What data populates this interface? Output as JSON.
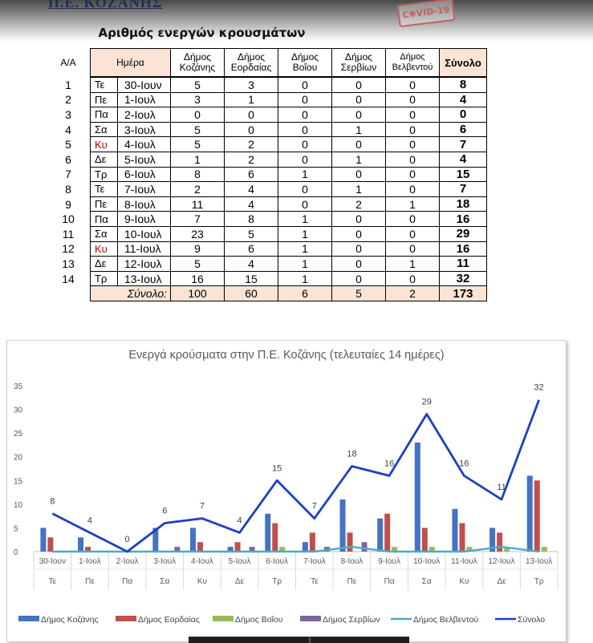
{
  "header": {
    "region": "Π.Ε. ΚΟΖΑΝΗΣ",
    "stamp": "C✱VID-19"
  },
  "table": {
    "title": "Αριθμός ενεργών κρουσμάτων",
    "head": {
      "aa": "Α/Α",
      "day": "Ημέρα",
      "c1a": "Δήμος",
      "c1b": "Κοζάνης",
      "c2a": "Δήμος",
      "c2b": "Εορδαίας",
      "c3a": "Δήμος",
      "c3b": "Βοΐου",
      "c4a": "Δήμος",
      "c4b": "Σερβίων",
      "c5a": "Δήμος",
      "c5b": "Βελβεντού",
      "total": "Σύνολο"
    },
    "rows": [
      {
        "aa": "1",
        "wd": "Τε",
        "date": "30-Ιουν",
        "k": "5",
        "e": "3",
        "v": "0",
        "s": "0",
        "b": "0",
        "t": "8"
      },
      {
        "aa": "2",
        "wd": "Πε",
        "date": "1-Ιουλ",
        "k": "3",
        "e": "1",
        "v": "0",
        "s": "0",
        "b": "0",
        "t": "4"
      },
      {
        "aa": "3",
        "wd": "Πα",
        "date": "2-Ιουλ",
        "k": "0",
        "e": "0",
        "v": "0",
        "s": "0",
        "b": "0",
        "t": "0"
      },
      {
        "aa": "4",
        "wd": "Σα",
        "date": "3-Ιουλ",
        "k": "5",
        "e": "0",
        "v": "0",
        "s": "1",
        "b": "0",
        "t": "6"
      },
      {
        "aa": "5",
        "wd": "Κυ",
        "date": "4-Ιουλ",
        "k": "5",
        "e": "2",
        "v": "0",
        "s": "0",
        "b": "0",
        "t": "7"
      },
      {
        "aa": "6",
        "wd": "Δε",
        "date": "5-Ιουλ",
        "k": "1",
        "e": "2",
        "v": "0",
        "s": "1",
        "b": "0",
        "t": "4"
      },
      {
        "aa": "7",
        "wd": "Τρ",
        "date": "6-Ιουλ",
        "k": "8",
        "e": "6",
        "v": "1",
        "s": "0",
        "b": "0",
        "t": "15"
      },
      {
        "aa": "8",
        "wd": "Τε",
        "date": "7-Ιουλ",
        "k": "2",
        "e": "4",
        "v": "0",
        "s": "1",
        "b": "0",
        "t": "7"
      },
      {
        "aa": "9",
        "wd": "Πε",
        "date": "8-Ιουλ",
        "k": "11",
        "e": "4",
        "v": "0",
        "s": "2",
        "b": "1",
        "t": "18"
      },
      {
        "aa": "10",
        "wd": "Πα",
        "date": "9-Ιουλ",
        "k": "7",
        "e": "8",
        "v": "1",
        "s": "0",
        "b": "0",
        "t": "16"
      },
      {
        "aa": "11",
        "wd": "Σα",
        "date": "10-Ιουλ",
        "k": "23",
        "e": "5",
        "v": "1",
        "s": "0",
        "b": "0",
        "t": "29"
      },
      {
        "aa": "12",
        "wd": "Κυ",
        "date": "11-Ιουλ",
        "k": "9",
        "e": "6",
        "v": "1",
        "s": "0",
        "b": "0",
        "t": "16"
      },
      {
        "aa": "13",
        "wd": "Δε",
        "date": "12-Ιουλ",
        "k": "5",
        "e": "4",
        "v": "1",
        "s": "0",
        "b": "1",
        "t": "11"
      },
      {
        "aa": "14",
        "wd": "Τρ",
        "date": "13-Ιουλ",
        "k": "16",
        "e": "15",
        "v": "1",
        "s": "0",
        "b": "0",
        "t": "32"
      }
    ],
    "sum": {
      "label": "Σύνολο:",
      "k": "100",
      "e": "60",
      "v": "6",
      "s": "5",
      "b": "2",
      "t": "173"
    },
    "weekend_color": "#c00000"
  },
  "chart_data": {
    "type": "bar",
    "title": "Ενεργά κρούσματα στην Π.Ε. Κοζάνης (τελευταίες 14 ημέρες)",
    "categories": [
      "30-Ιουν",
      "1-Ιουλ",
      "2-Ιουλ",
      "3-Ιουλ",
      "4-Ιουλ",
      "5-Ιουλ",
      "6-Ιουλ",
      "7-Ιουλ",
      "8-Ιουλ",
      "9-Ιουλ",
      "10-Ιουλ",
      "11-Ιουλ",
      "12-Ιουλ",
      "13-Ιουλ"
    ],
    "weekdays": [
      "Τε",
      "Πε",
      "Πα",
      "Σα",
      "Κυ",
      "Δε",
      "Τρ",
      "Τε",
      "Πε",
      "Πα",
      "Σα",
      "Κυ",
      "Δε",
      "Τρ"
    ],
    "series": [
      {
        "name": "Δήμος Κοζάνης",
        "type": "bar",
        "color": "#4472c4",
        "values": [
          5,
          3,
          0,
          5,
          5,
          1,
          8,
          2,
          11,
          7,
          23,
          9,
          5,
          16
        ]
      },
      {
        "name": "Δήμος Εορδαίας",
        "type": "bar",
        "color": "#c0504d",
        "values": [
          3,
          1,
          0,
          0,
          2,
          2,
          6,
          4,
          4,
          8,
          5,
          6,
          4,
          15
        ]
      },
      {
        "name": "Δήμος Βοΐου",
        "type": "bar",
        "color": "#9bbb59",
        "values": [
          0,
          0,
          0,
          0,
          0,
          0,
          1,
          0,
          0,
          1,
          1,
          1,
          1,
          1
        ]
      },
      {
        "name": "Δήμος Σερβίων",
        "type": "bar",
        "color": "#8064a2",
        "values": [
          0,
          0,
          0,
          1,
          0,
          1,
          0,
          1,
          2,
          0,
          0,
          0,
          0,
          0
        ]
      },
      {
        "name": "Δήμος Βελβεντού",
        "type": "line",
        "color": "#4bacc6",
        "values": [
          0,
          0,
          0,
          0,
          0,
          0,
          0,
          0,
          1,
          0,
          0,
          0,
          1,
          0
        ]
      },
      {
        "name": "Σύνολο",
        "type": "line",
        "color": "#1f3fbf",
        "values": [
          8,
          4,
          0,
          6,
          7,
          4,
          15,
          7,
          18,
          16,
          29,
          16,
          11,
          32
        ],
        "labels": true
      }
    ],
    "ylim": [
      0,
      35
    ],
    "yticks": [
      0,
      5,
      10,
      15,
      20,
      25,
      30,
      35
    ],
    "grid": false,
    "legend": "bottom"
  }
}
